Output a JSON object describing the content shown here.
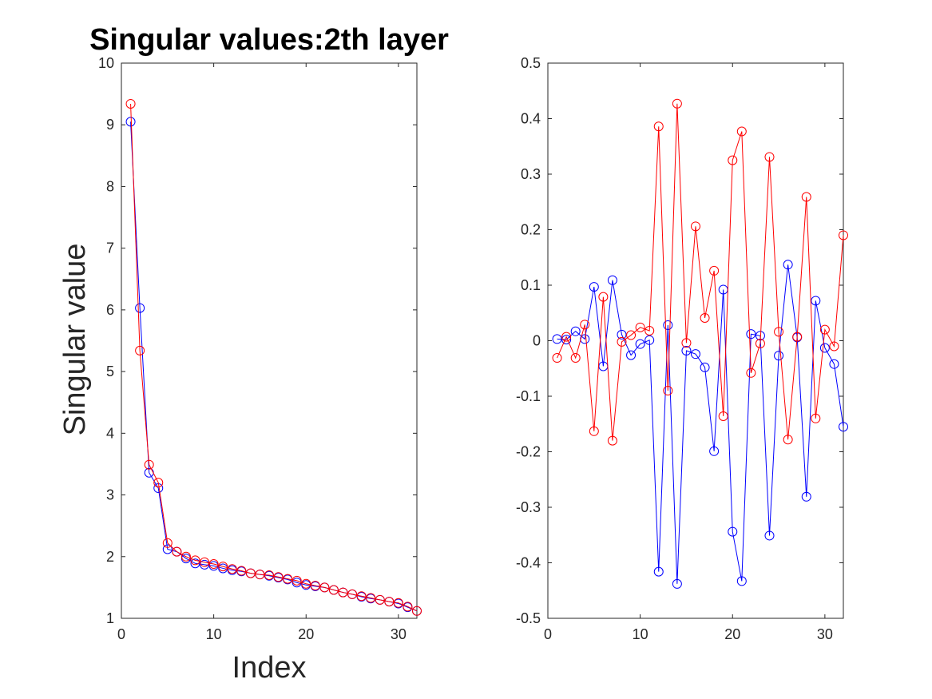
{
  "chart_data": [
    {
      "type": "line",
      "title": "Singular values:2th layer",
      "xlabel": "Index",
      "ylabel": "Singular value",
      "xlim": [
        0,
        32
      ],
      "ylim": [
        1,
        10
      ],
      "xticks": [
        0,
        10,
        20,
        30
      ],
      "yticks": [
        1,
        2,
        3,
        4,
        5,
        6,
        7,
        8,
        9,
        10
      ],
      "grid": false,
      "legend": "none",
      "marker": "circle",
      "x": [
        1,
        2,
        3,
        4,
        5,
        6,
        7,
        8,
        9,
        10,
        11,
        12,
        13,
        14,
        15,
        16,
        17,
        18,
        19,
        20,
        21,
        22,
        23,
        24,
        25,
        26,
        27,
        28,
        29,
        30,
        31,
        32
      ],
      "series": [
        {
          "color": "#0000ff",
          "values": [
            9.05,
            6.03,
            3.36,
            3.11,
            2.12,
            2.08,
            1.97,
            1.89,
            1.87,
            1.85,
            1.81,
            1.78,
            1.76,
            1.73,
            1.71,
            1.69,
            1.66,
            1.63,
            1.58,
            1.54,
            1.52,
            1.5,
            1.46,
            1.42,
            1.39,
            1.35,
            1.32,
            1.3,
            1.27,
            1.24,
            1.18,
            1.12
          ]
        },
        {
          "color": "#ff0000",
          "values": [
            9.34,
            5.34,
            3.49,
            3.2,
            2.22,
            2.08,
            2.0,
            1.94,
            1.91,
            1.88,
            1.84,
            1.8,
            1.77,
            1.73,
            1.71,
            1.7,
            1.67,
            1.64,
            1.61,
            1.56,
            1.53,
            1.5,
            1.46,
            1.42,
            1.39,
            1.36,
            1.33,
            1.3,
            1.27,
            1.25,
            1.19,
            1.12
          ]
        }
      ]
    },
    {
      "type": "line",
      "title": "",
      "xlabel": "",
      "ylabel": "",
      "xlim": [
        0,
        32
      ],
      "ylim": [
        -0.5,
        0.5
      ],
      "xticks": [
        0,
        10,
        20,
        30
      ],
      "yticks": [
        -0.5,
        -0.4,
        -0.3,
        -0.2,
        -0.1,
        0,
        0.1,
        0.2,
        0.3,
        0.4,
        0.5
      ],
      "grid": false,
      "legend": "none",
      "marker": "circle",
      "x": [
        1,
        2,
        3,
        4,
        5,
        6,
        7,
        8,
        9,
        10,
        11,
        12,
        13,
        14,
        15,
        16,
        17,
        18,
        19,
        20,
        21,
        22,
        23,
        24,
        25,
        26,
        27,
        28,
        29,
        30,
        31,
        32
      ],
      "series": [
        {
          "color": "#0000ff",
          "values": [
            0.003,
            0.002,
            0.017,
            0.003,
            0.097,
            -0.046,
            0.109,
            0.011,
            -0.026,
            -0.006,
            0.001,
            -0.416,
            0.028,
            -0.438,
            -0.018,
            -0.024,
            -0.048,
            -0.199,
            0.092,
            -0.344,
            -0.433,
            0.012,
            0.009,
            -0.351,
            -0.027,
            0.137,
            0.006,
            -0.281,
            0.072,
            -0.013,
            -0.042,
            -0.155
          ]
        },
        {
          "color": "#ff0000",
          "values": [
            -0.031,
            0.007,
            -0.031,
            0.029,
            -0.163,
            0.079,
            -0.18,
            -0.002,
            0.01,
            0.024,
            0.018,
            0.386,
            -0.09,
            0.427,
            -0.004,
            0.206,
            0.041,
            0.126,
            -0.136,
            0.325,
            0.377,
            -0.058,
            -0.005,
            0.331,
            0.016,
            -0.178,
            0.007,
            0.259,
            -0.14,
            0.02,
            -0.01,
            0.19
          ]
        }
      ]
    }
  ]
}
